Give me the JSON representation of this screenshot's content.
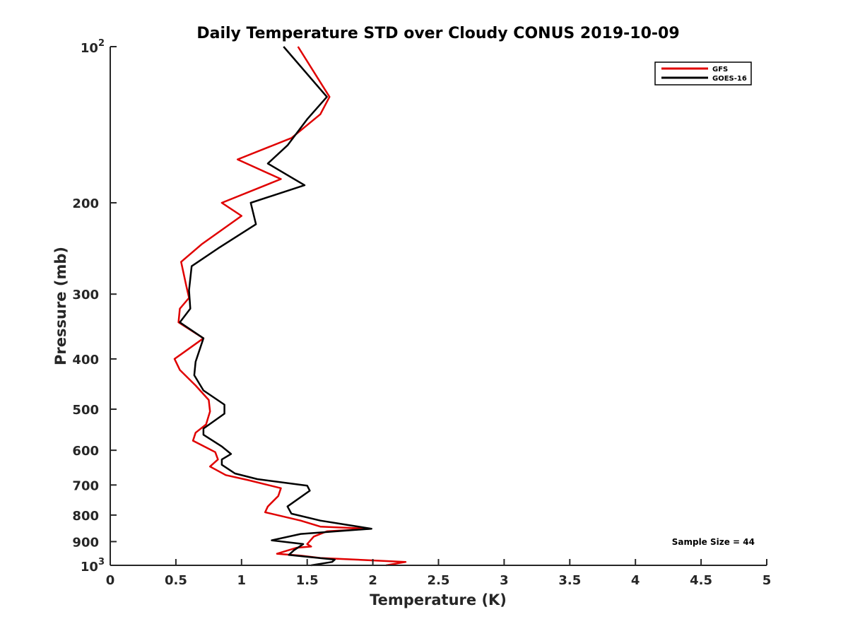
{
  "chart_data": {
    "type": "line",
    "title": "Daily Temperature STD over Cloudy CONUS 2019-10-09",
    "xlabel": "Temperature (K)",
    "ylabel": "Pressure (mb)",
    "xlim": [
      0,
      5
    ],
    "ylim": [
      100,
      1000
    ],
    "y_scale": "log",
    "y_reversed": true,
    "grid": false,
    "legend_position": "top-right",
    "x_ticks": [
      "0",
      "0.5",
      "1",
      "1.5",
      "2",
      "2.5",
      "3",
      "3.5",
      "4",
      "4.5",
      "5"
    ],
    "y_ticks": [
      {
        "value": 100,
        "label": "10",
        "exp": "2"
      },
      {
        "value": 200,
        "label": "200",
        "exp": ""
      },
      {
        "value": 300,
        "label": "300",
        "exp": ""
      },
      {
        "value": 400,
        "label": "400",
        "exp": ""
      },
      {
        "value": 500,
        "label": "500",
        "exp": ""
      },
      {
        "value": 600,
        "label": "600",
        "exp": ""
      },
      {
        "value": 700,
        "label": "700",
        "exp": ""
      },
      {
        "value": 800,
        "label": "800",
        "exp": ""
      },
      {
        "value": 900,
        "label": "900",
        "exp": ""
      },
      {
        "value": 1000,
        "label": "10",
        "exp": "3"
      }
    ],
    "annotation": "Sample Size = 44",
    "series": [
      {
        "name": "GFS",
        "color": "#e00000",
        "points": [
          [
            1.43,
            100
          ],
          [
            1.67,
            125
          ],
          [
            1.6,
            135
          ],
          [
            1.38,
            150
          ],
          [
            0.97,
            165
          ],
          [
            1.3,
            180
          ],
          [
            0.85,
            200
          ],
          [
            1.0,
            212
          ],
          [
            0.7,
            240
          ],
          [
            0.54,
            260
          ],
          [
            0.58,
            290
          ],
          [
            0.6,
            305
          ],
          [
            0.53,
            320
          ],
          [
            0.52,
            340
          ],
          [
            0.71,
            365
          ],
          [
            0.49,
            400
          ],
          [
            0.53,
            420
          ],
          [
            0.65,
            450
          ],
          [
            0.75,
            480
          ],
          [
            0.76,
            505
          ],
          [
            0.73,
            535
          ],
          [
            0.65,
            555
          ],
          [
            0.63,
            575
          ],
          [
            0.8,
            605
          ],
          [
            0.82,
            625
          ],
          [
            0.76,
            645
          ],
          [
            0.88,
            670
          ],
          [
            1.05,
            685
          ],
          [
            1.3,
            710
          ],
          [
            1.28,
            735
          ],
          [
            1.2,
            770
          ],
          [
            1.18,
            790
          ],
          [
            1.45,
            820
          ],
          [
            1.6,
            842
          ],
          [
            1.98,
            850
          ],
          [
            1.65,
            860
          ],
          [
            1.55,
            880
          ],
          [
            1.5,
            910
          ],
          [
            1.53,
            920
          ],
          [
            1.42,
            925
          ],
          [
            1.27,
            950
          ],
          [
            1.45,
            958
          ],
          [
            1.6,
            968
          ],
          [
            2.25,
            985
          ],
          [
            2.1,
            1000
          ]
        ]
      },
      {
        "name": "GOES-16",
        "color": "#000000",
        "points": [
          [
            1.32,
            100
          ],
          [
            1.65,
            125
          ],
          [
            1.5,
            138
          ],
          [
            1.35,
            155
          ],
          [
            1.2,
            168
          ],
          [
            1.48,
            185
          ],
          [
            1.07,
            200
          ],
          [
            1.11,
            220
          ],
          [
            0.82,
            245
          ],
          [
            0.62,
            265
          ],
          [
            0.6,
            295
          ],
          [
            0.61,
            320
          ],
          [
            0.53,
            340
          ],
          [
            0.71,
            365
          ],
          [
            0.65,
            405
          ],
          [
            0.64,
            430
          ],
          [
            0.71,
            460
          ],
          [
            0.87,
            490
          ],
          [
            0.87,
            510
          ],
          [
            0.71,
            545
          ],
          [
            0.71,
            560
          ],
          [
            0.85,
            590
          ],
          [
            0.92,
            610
          ],
          [
            0.85,
            625
          ],
          [
            0.85,
            640
          ],
          [
            0.95,
            665
          ],
          [
            1.12,
            682
          ],
          [
            1.5,
            702
          ],
          [
            1.52,
            718
          ],
          [
            1.35,
            770
          ],
          [
            1.38,
            795
          ],
          [
            1.6,
            820
          ],
          [
            1.99,
            850
          ],
          [
            1.45,
            870
          ],
          [
            1.23,
            895
          ],
          [
            1.47,
            910
          ],
          [
            1.4,
            935
          ],
          [
            1.36,
            955
          ],
          [
            1.71,
            975
          ],
          [
            1.69,
            985
          ],
          [
            1.53,
            1000
          ]
        ]
      }
    ]
  }
}
